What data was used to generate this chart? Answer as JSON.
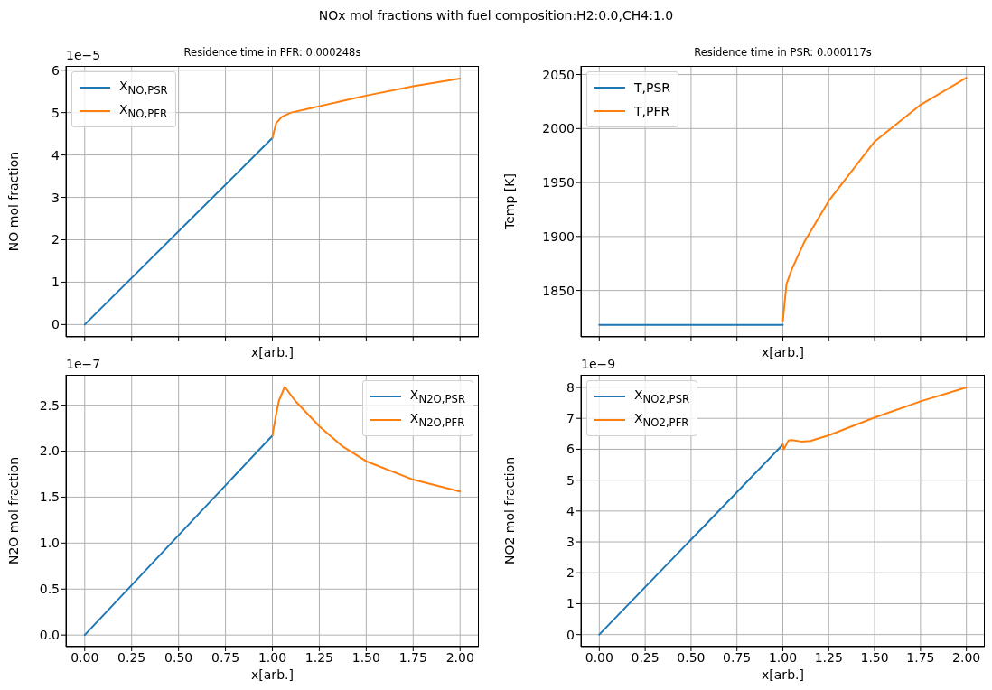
{
  "chart_data": [
    {
      "type": "line",
      "title": "Residence time in PFR: 0.000248s",
      "xlabel": "x[arb.]",
      "ylabel": "NO mol fraction",
      "annotations": [
        "NOx mol fractions with fuel composition:H2:0.0,CH4:1.0",
        "1e−5"
      ],
      "series": [
        {
          "name": "X$_{NO,PSR}$",
          "color": "#1f77b4",
          "x": [
            0,
            1
          ],
          "values": [
            0,
            4.4
          ]
        },
        {
          "name": "X$_{NO,PFR}$",
          "color": "#ff7f0e",
          "x": [
            1,
            1.02,
            1.05,
            1.1,
            1.2,
            1.25,
            1.4,
            1.5,
            1.75,
            2
          ],
          "values": [
            4.4,
            4.75,
            4.9,
            5.0,
            5.1,
            5.15,
            5.3,
            5.4,
            5.62,
            5.8
          ]
        }
      ],
      "xlim": [
        -0.1,
        2.1
      ],
      "xticks": [
        {
          "value": 0,
          "label": null
        },
        {
          "value": 0.25,
          "label": null
        },
        {
          "value": 0.5,
          "label": null
        },
        {
          "value": 0.75,
          "label": null
        },
        {
          "value": 1,
          "label": null
        },
        {
          "value": 1.25,
          "label": null
        },
        {
          "value": 1.5,
          "label": null
        },
        {
          "value": 1.75,
          "label": null
        },
        {
          "value": 2,
          "label": null
        }
      ],
      "ylim": [
        -0.29,
        6.1
      ],
      "yticks": [
        0,
        1,
        2,
        3,
        4,
        5,
        6
      ],
      "tick_labels": "y",
      "grid": true,
      "legend": "top left"
    },
    {
      "type": "line",
      "title": "Residence time in PSR: 0.000117s",
      "xlabel": "x[arb.]",
      "ylabel": "Temp [K]",
      "series": [
        {
          "name": "T,PSR",
          "color": "#1f77b4",
          "x": [
            0,
            1
          ],
          "values": [
            1818,
            1818
          ]
        },
        {
          "name": "T,PFR",
          "color": "#ff7f0e",
          "x": [
            1,
            1.02,
            1.05,
            1.117,
            1.25,
            1.5,
            1.75,
            2
          ],
          "values": [
            1822,
            1856,
            1870,
            1895,
            1933,
            1988,
            2022,
            2047
          ]
        }
      ],
      "xlim": [
        -0.1,
        2.1
      ],
      "xticks": [
        {
          "value": 0,
          "label": null
        },
        {
          "value": 0.25,
          "label": null
        },
        {
          "value": 0.5,
          "label": null
        },
        {
          "value": 0.75,
          "label": null
        },
        {
          "value": 1,
          "label": null
        },
        {
          "value": 1.25,
          "label": null
        },
        {
          "value": 1.5,
          "label": null
        },
        {
          "value": 1.75,
          "label": null
        },
        {
          "value": 2,
          "label": null
        }
      ],
      "ylim": [
        1807,
        2058
      ],
      "yticks": [
        1850,
        1900,
        1950,
        2000,
        2050
      ],
      "tick_labels": "y",
      "grid": true,
      "legend": "top left"
    },
    {
      "type": "line",
      "xlabel": "x[arb.]",
      "ylabel": "N2O mol fraction",
      "annotations": [
        "1e−7"
      ],
      "series": [
        {
          "name": "X$_{N2O,PSR}$",
          "color": "#1f77b4",
          "x": [
            0,
            1
          ],
          "values": [
            0,
            2.17
          ]
        },
        {
          "name": "X$_{N2O,PFR}$",
          "color": "#ff7f0e",
          "x": [
            1,
            1.02,
            1.035,
            1.066,
            1.12,
            1.25,
            1.375,
            1.5,
            1.75,
            2
          ],
          "values": [
            2.17,
            2.4,
            2.55,
            2.7,
            2.55,
            2.27,
            2.05,
            1.89,
            1.69,
            1.56
          ]
        }
      ],
      "xlim": [
        -0.1,
        2.1
      ],
      "xticks": [
        {
          "value": 0,
          "label": "0.00"
        },
        {
          "value": 0.25,
          "label": "0.25"
        },
        {
          "value": 0.5,
          "label": "0.50"
        },
        {
          "value": 0.75,
          "label": "0.75"
        },
        {
          "value": 1,
          "label": "1.00"
        },
        {
          "value": 1.25,
          "label": "1.25"
        },
        {
          "value": 1.5,
          "label": "1.50"
        },
        {
          "value": 1.75,
          "label": "1.75"
        },
        {
          "value": 2,
          "label": "2.00"
        }
      ],
      "ylim": [
        -0.126,
        2.83
      ],
      "yticks": [
        {
          "value": 0,
          "label": "0.0"
        },
        {
          "value": 0.5,
          "label": "0.5"
        },
        {
          "value": 1,
          "label": "1.0"
        },
        {
          "value": 1.5,
          "label": "1.5"
        },
        {
          "value": 2,
          "label": "2.0"
        },
        {
          "value": 2.5,
          "label": "2.5"
        }
      ],
      "grid": true,
      "legend": "top right"
    },
    {
      "type": "line",
      "xlabel": "x[arb.]",
      "ylabel": "NO2 mol fraction",
      "annotations": [
        "1e−9"
      ],
      "series": [
        {
          "name": "X$_{NO2,PSR}$",
          "color": "#1f77b4",
          "x": [
            0,
            1
          ],
          "values": [
            0,
            6.15
          ]
        },
        {
          "name": "X$_{NO2,PFR}$",
          "color": "#ff7f0e",
          "x": [
            1,
            1.005,
            1.03,
            1.05,
            1.1,
            1.15,
            1.25,
            1.5,
            1.75,
            2
          ],
          "values": [
            6.15,
            6.0,
            6.28,
            6.3,
            6.25,
            6.27,
            6.45,
            7.03,
            7.55,
            8.0
          ]
        }
      ],
      "xlim": [
        -0.1,
        2.1
      ],
      "xticks": [
        {
          "value": 0,
          "label": "0.00"
        },
        {
          "value": 0.25,
          "label": "0.25"
        },
        {
          "value": 0.5,
          "label": "0.50"
        },
        {
          "value": 0.75,
          "label": "0.75"
        },
        {
          "value": 1,
          "label": "1.00"
        },
        {
          "value": 1.25,
          "label": "1.25"
        },
        {
          "value": 1.5,
          "label": "1.50"
        },
        {
          "value": 1.75,
          "label": "1.75"
        },
        {
          "value": 2,
          "label": "2.00"
        }
      ],
      "ylim": [
        -0.39,
        8.41
      ],
      "yticks": [
        0,
        1,
        2,
        3,
        4,
        5,
        6,
        7,
        8
      ],
      "grid": true,
      "legend": "top left"
    }
  ]
}
